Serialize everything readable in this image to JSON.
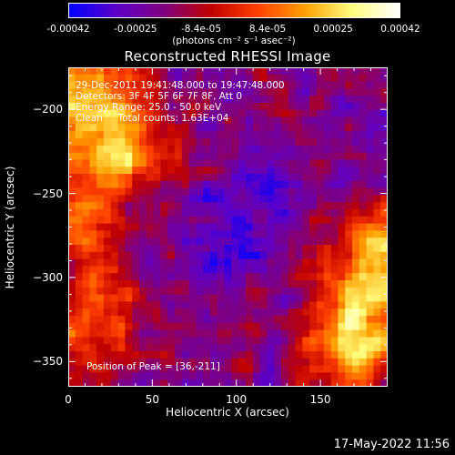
{
  "colorbar": {
    "ticks": [
      "-0.00042",
      "-0.00025",
      "-8.4e-05",
      "8.4e-05",
      "0.00025",
      "0.00042"
    ],
    "tick_values": [
      -0.00042,
      -0.00025,
      -8.4e-05,
      8.4e-05,
      0.00025,
      0.00042
    ],
    "range": [
      -0.00042,
      0.00042
    ],
    "units": "(photons cm⁻² s⁻¹ asec⁻²)",
    "colors": [
      "#0000ff",
      "#5c00c8",
      "#800080",
      "#c00000",
      "#ff4000",
      "#ffa000",
      "#ffff80",
      "#ffffff"
    ]
  },
  "title": "Reconstructed RHESSI Image",
  "info": {
    "line1": "29-Dec-2011 19:41:48.000 to 19:47:48.000",
    "line2": "Detectors: 3F 4F 5F 6F 7F 8F, Att 0",
    "line3": "Energy Range: 25.0 - 50.0 keV",
    "line4": "Clean     Total counts: 1.63E+04",
    "peak": "Position of Peak = [36,-211]"
  },
  "axes": {
    "xlabel": "Heliocentric X (arcsec)",
    "ylabel": "Heliocentric Y (arcsec)",
    "xlim": [
      0,
      190
    ],
    "ylim": [
      -365,
      -175
    ],
    "xticks": [
      "0",
      "50",
      "100",
      "150"
    ],
    "xtick_values": [
      0,
      50,
      100,
      150
    ],
    "yticks": [
      "-200",
      "-250",
      "-300",
      "-350"
    ],
    "ytick_values": [
      -200,
      -250,
      -300,
      -350
    ]
  },
  "timestamp": "17-May-2022 11:56"
}
